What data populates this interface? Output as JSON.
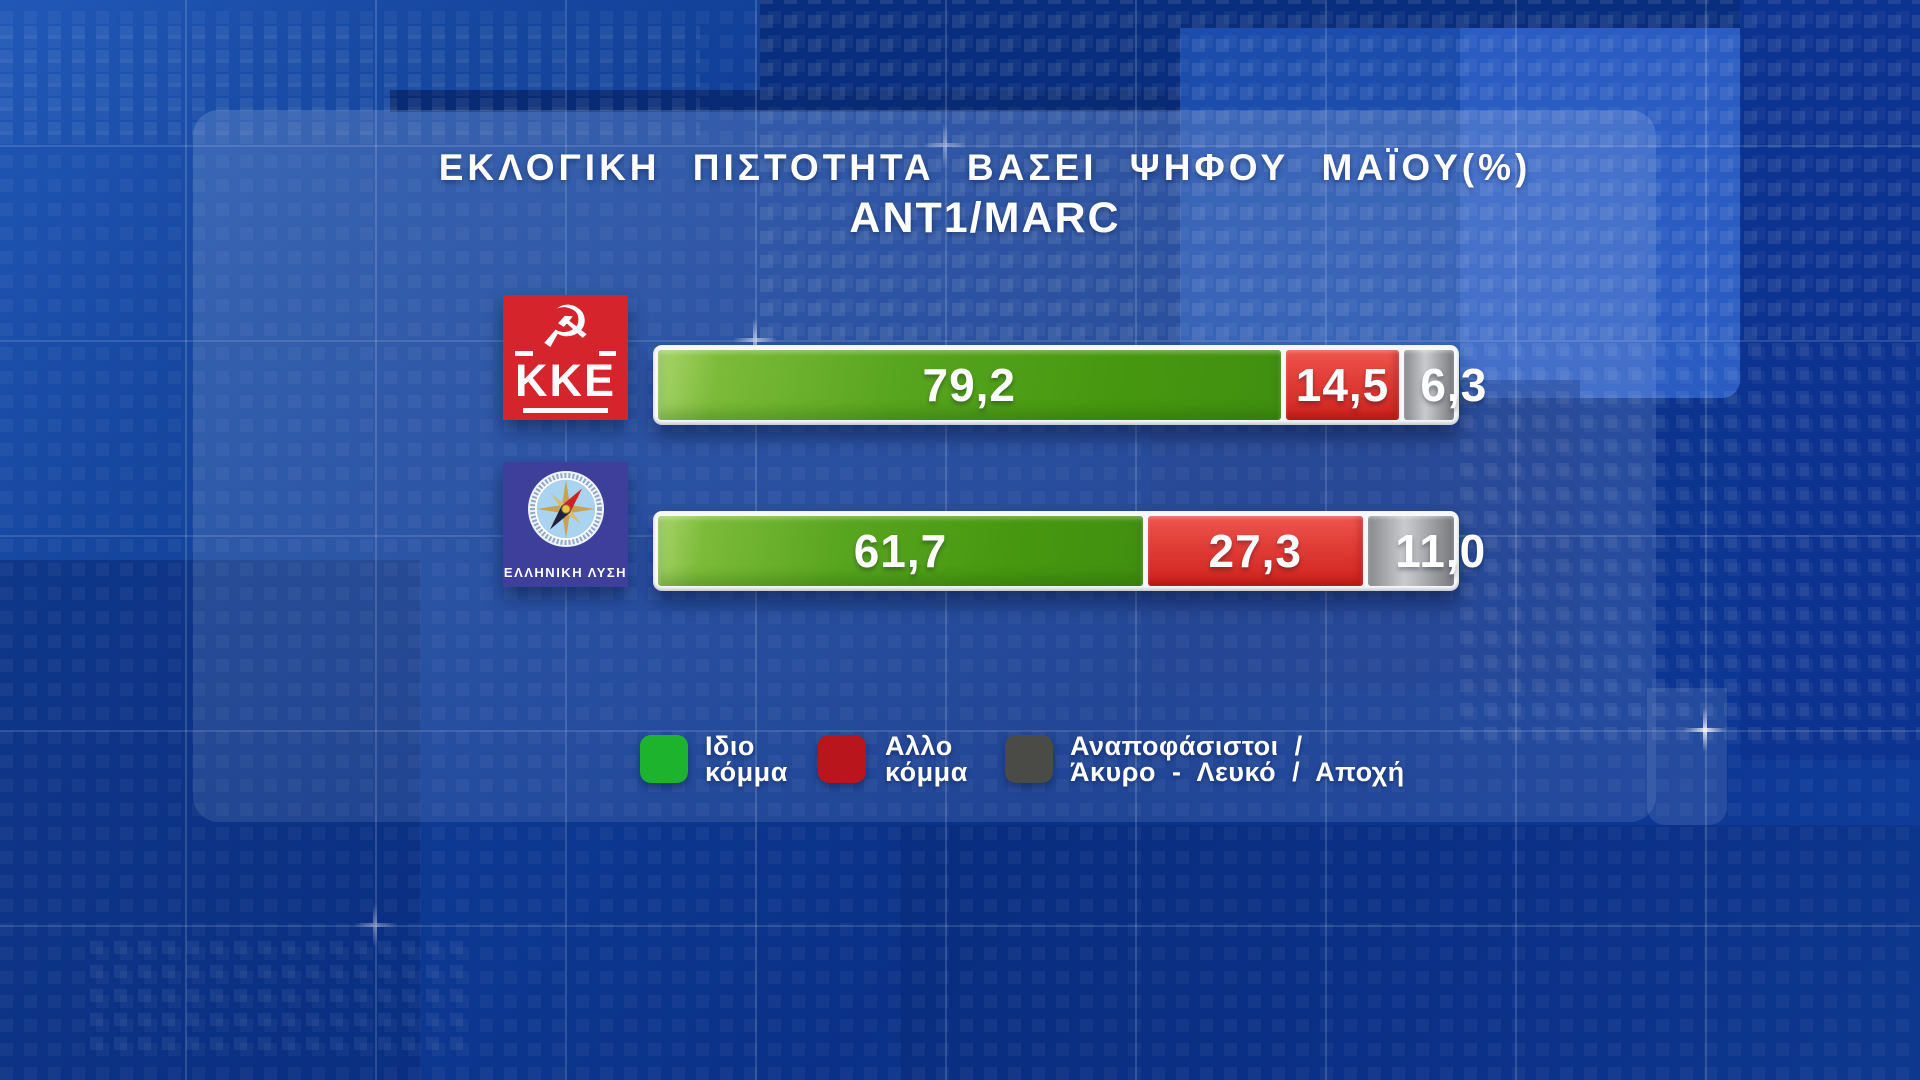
{
  "header": {
    "title": "ΕΚΛΟΓΙΚΗ ΠΙΣΤΟΤΗΤΑ ΒΑΣΕΙ ΨΗΦΟΥ ΜΑΪΟΥ(%)",
    "subtitle": "ΑΝΤ1/MARC"
  },
  "rows": [
    {
      "party": "ΚΚΕ",
      "logo": {
        "text": "KKE",
        "symbol": "hammer-and-sickle",
        "symbol_glyph": "☭",
        "bg": "#d5242c"
      },
      "segments": [
        {
          "kind": "own",
          "value": 79.2,
          "label": "79,2"
        },
        {
          "kind": "other",
          "value": 14.5,
          "label": "14,5"
        },
        {
          "kind": "undecided",
          "value": 6.3,
          "label": "6,3"
        }
      ]
    },
    {
      "party": "ΕΛΛΗΝΙΚΗ ΛΥΣΗ",
      "logo": {
        "text": "ΕΛΛΗΝΙΚΗ ΛΥΣΗ",
        "symbol": "compass",
        "bg": "#3d3f9b"
      },
      "segments": [
        {
          "kind": "own",
          "value": 61.7,
          "label": "61,7"
        },
        {
          "kind": "other",
          "value": 27.3,
          "label": "27,3"
        },
        {
          "kind": "undecided",
          "value": 11.0,
          "label": "11,0"
        }
      ]
    }
  ],
  "legend": {
    "items": [
      {
        "line1": "Ιδιο",
        "line2": "κόμμα",
        "color": "#1db32c"
      },
      {
        "line1": "Αλλο",
        "line2": "κόμμα",
        "color": "#b8161c"
      },
      {
        "line1": "Αναποφάσιστοι /",
        "line2": "Άκυρο - Λευκό / Αποχή",
        "color": "#4a4a46"
      }
    ]
  },
  "colors": {
    "own_party_green": "#479810",
    "other_party_red": "#d82f28",
    "undecided_gray": "#9fa1a4",
    "bar_frame_white": "#f7f8fa",
    "background_blue": "#0e3a94",
    "text_white": "#ffffff"
  },
  "chart_data": {
    "type": "bar",
    "orientation": "horizontal-stacked",
    "title": "ΕΚΛΟΓΙΚΗ ΠΙΣΤΟΤΗΤΑ ΒΑΣΕΙ ΨΗΦΟΥ ΜΑΪΟΥ(%)",
    "subtitle": "ΑΝΤ1/MARC",
    "categories": [
      "ΚΚΕ",
      "ΕΛΛΗΝΙΚΗ ΛΥΣΗ"
    ],
    "series": [
      {
        "name": "Ιδιο κόμμα",
        "color": "#479810",
        "values": [
          79.2,
          61.7
        ]
      },
      {
        "name": "Αλλο κόμμα",
        "color": "#d82f28",
        "values": [
          14.5,
          27.3
        ]
      },
      {
        "name": "Αναποφάσιστοι / Άκυρο - Λευκό / Αποχή",
        "color": "#9fa1a4",
        "values": [
          6.3,
          11.0
        ]
      }
    ],
    "value_labels": [
      [
        "79,2",
        "14,5",
        "6,3"
      ],
      [
        "61,7",
        "27,3",
        "11,0"
      ]
    ],
    "xlim": [
      0,
      100
    ],
    "grid": false,
    "legend_position": "bottom",
    "decimal_separator": ","
  }
}
